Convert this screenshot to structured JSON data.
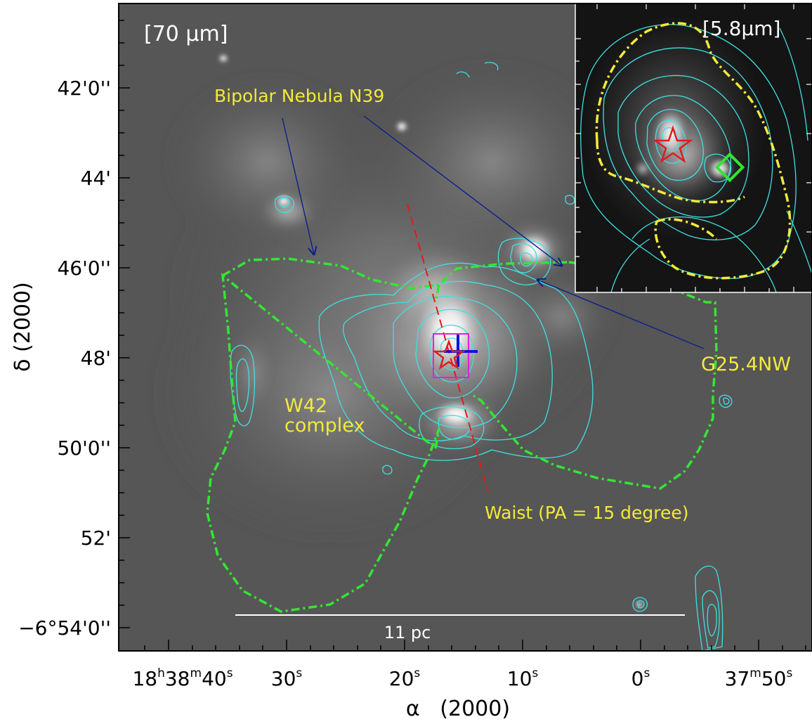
{
  "main_panel": {
    "band_label": "[70 μm]",
    "annotations": {
      "bipolar": "Bipolar Nebula N39",
      "g254nw": "G25.4NW",
      "w42_line1": "W42",
      "w42_line2": "complex",
      "waist": "Waist (PA = 15 degree)"
    },
    "scale_bar_label": "11 pc"
  },
  "inset_panel": {
    "band_label": "[5.8μm]"
  },
  "axes": {
    "ylabel": "δ (2000)",
    "xlabel": "α   (2000)",
    "yticks": [
      "42'0''",
      "44'",
      "46'0''",
      "48'",
      "50'0''",
      "52'",
      "−6°54'0''"
    ],
    "xticks": [
      {
        "h": "18",
        "hs": "h",
        "m": "38",
        "ms": "m",
        "s": "40",
        "ss": "s"
      },
      {
        "s": "30",
        "ss": "s"
      },
      {
        "s": "20",
        "ss": "s"
      },
      {
        "s": "10",
        "ss": "s"
      },
      {
        "s": "0",
        "ss": "s"
      },
      {
        "m": "37",
        "ms": "m",
        "s": "50",
        "ss": "s"
      }
    ]
  },
  "colors": {
    "contour": "#3fe0e0",
    "boundary": "#33e633",
    "annotation": "#f2ea3b",
    "star": "#e41a1c",
    "marker_box": "#e020e0",
    "cross": "#1010e0",
    "arrow": "#0c1f8a",
    "waist_line": "#e41a1c"
  },
  "icons": [
    "star-marker-icon",
    "diamond-marker-icon",
    "cross-marker-icon"
  ]
}
